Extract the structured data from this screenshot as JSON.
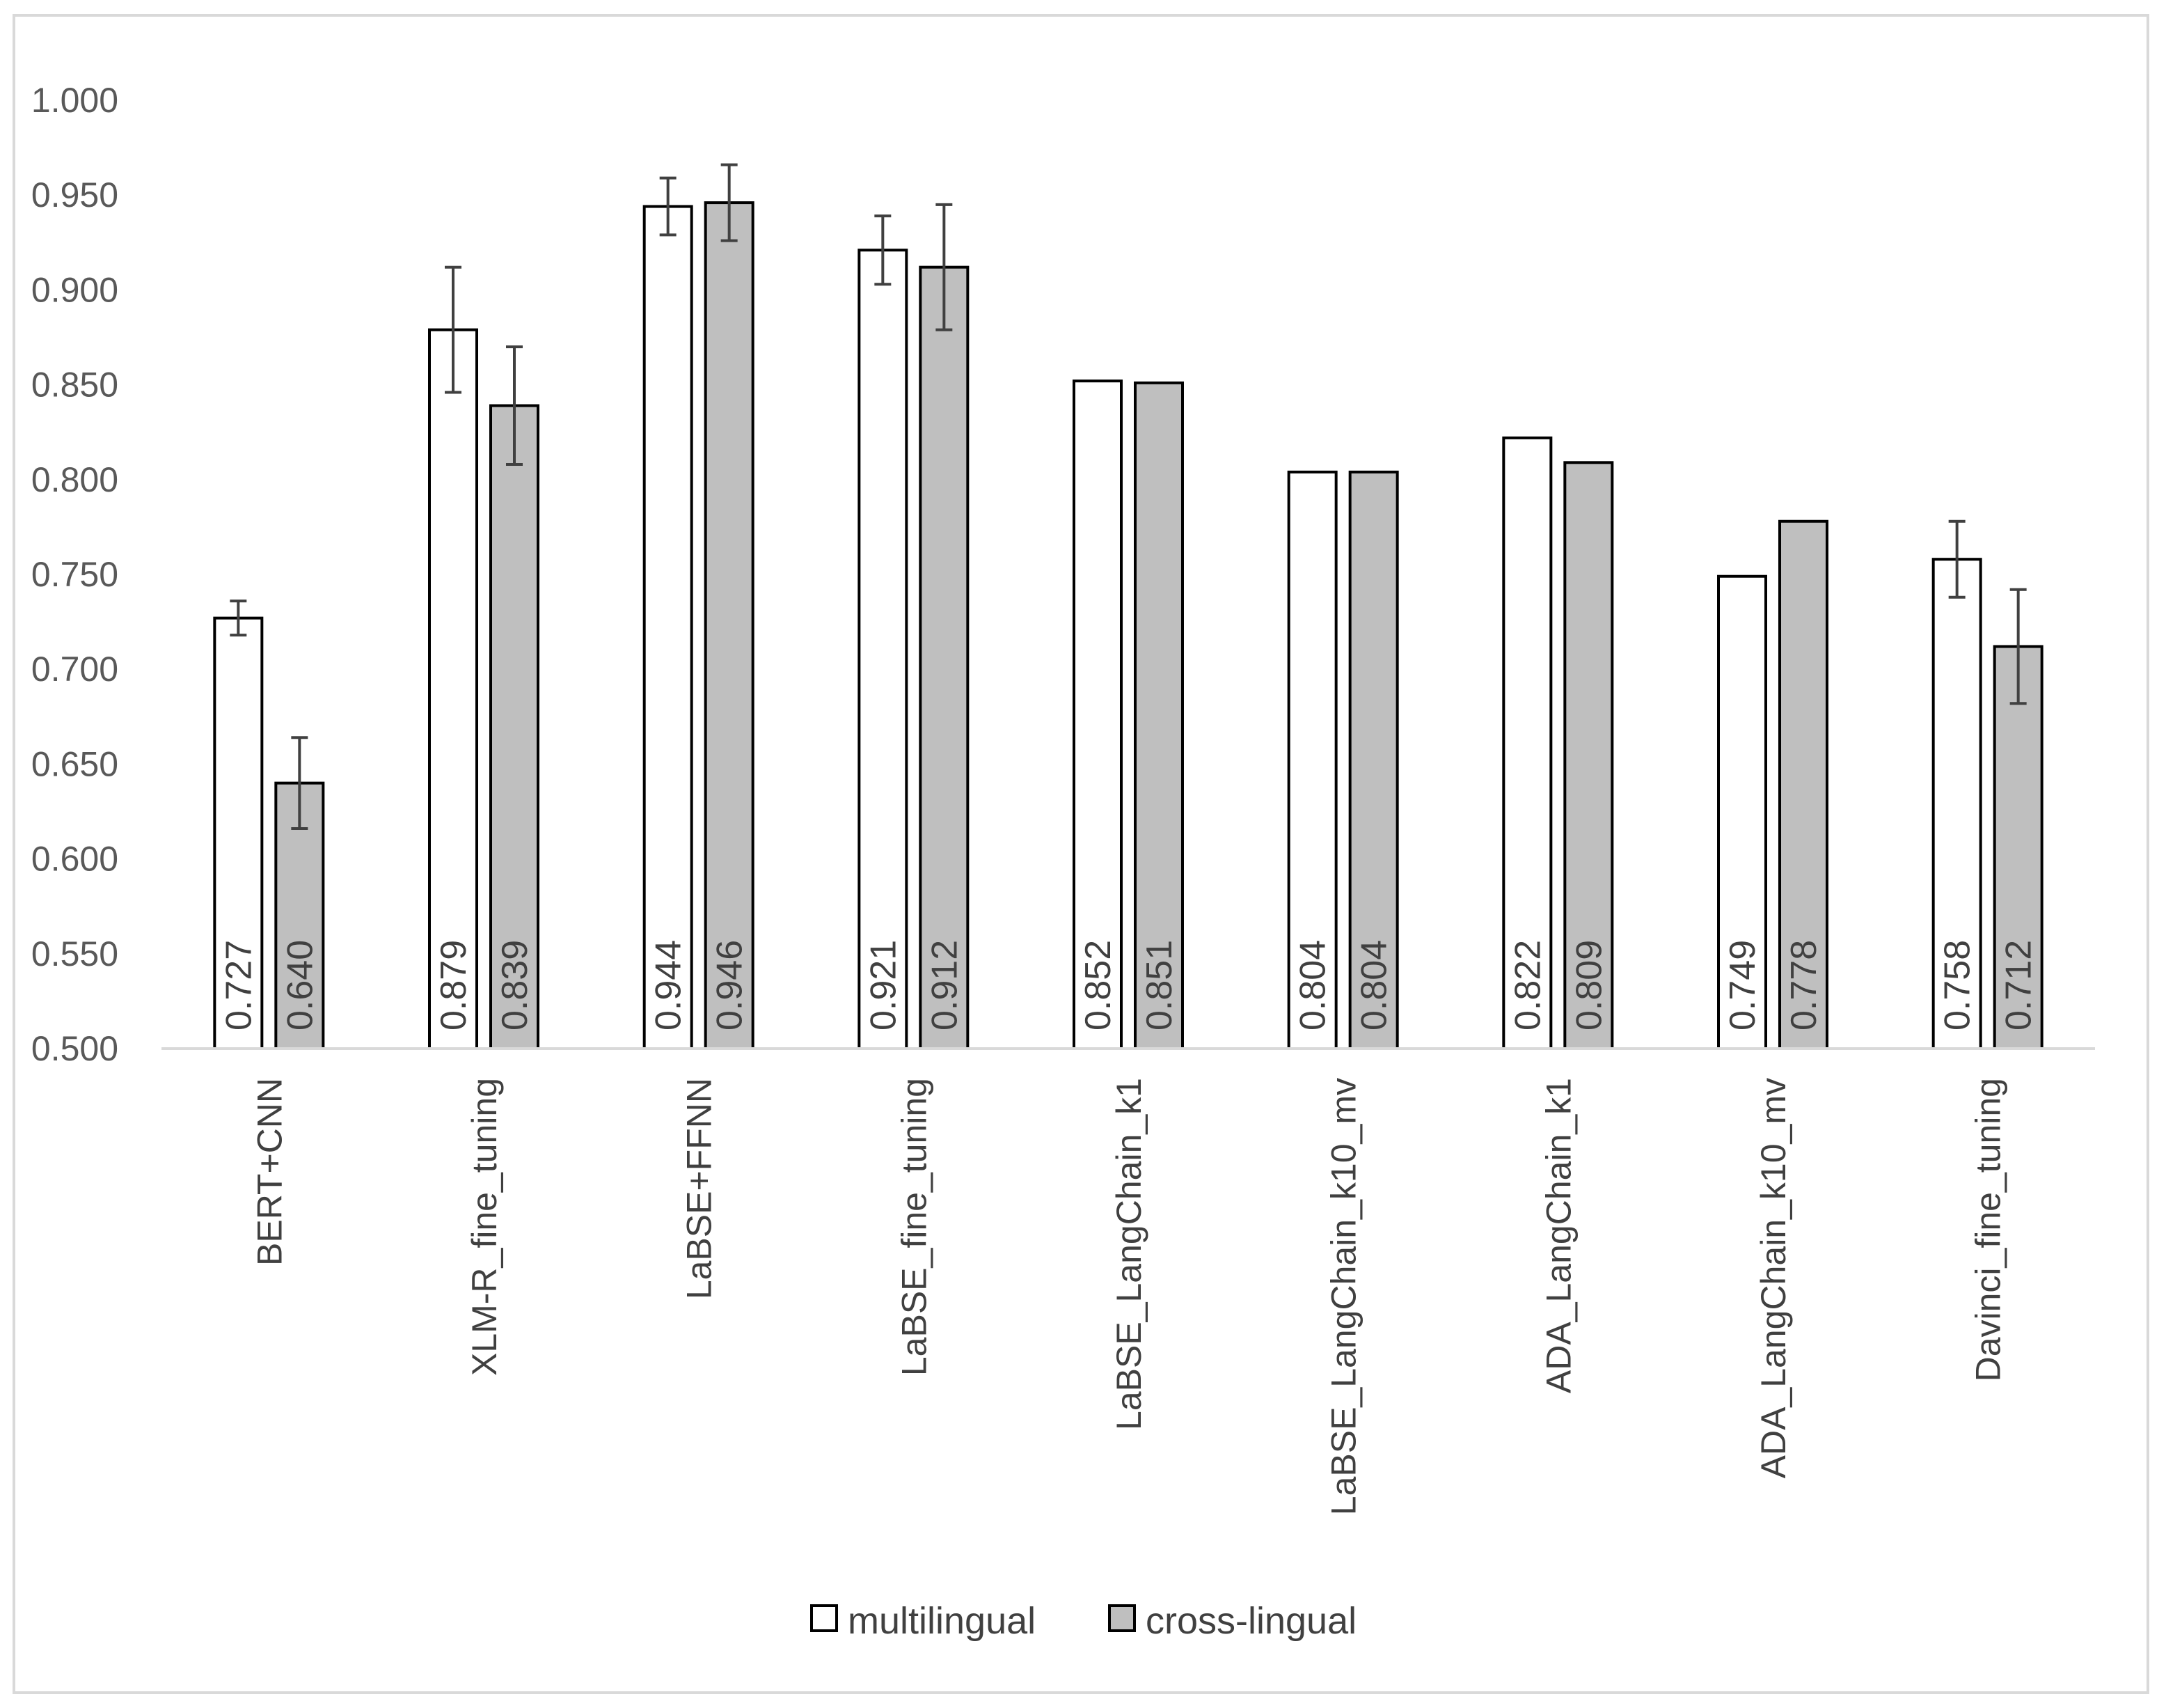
{
  "chart_data": {
    "type": "bar",
    "title": "",
    "xlabel": "",
    "ylabel": "",
    "ylim": [
      0.5,
      1.0
    ],
    "yticks": [
      "0.500",
      "0.550",
      "0.600",
      "0.650",
      "0.700",
      "0.750",
      "0.800",
      "0.850",
      "0.900",
      "0.950",
      "1.000"
    ],
    "grid": false,
    "legend_position": "bottom",
    "categories": [
      "BERT+CNN",
      "XLM-R_fine_tuning",
      "LaBSE+FFNN",
      "LaBSE_fine_tuning",
      "LaBSE_LangChain_k1",
      "LaBSE_LangChain_k10_mv",
      "ADA_LangChain_k1",
      "ADA_LangChain_k10_mv",
      "Davinci_fine_tuning"
    ],
    "series": [
      {
        "name": "multilingual",
        "color": "#ffffff",
        "values": [
          0.727,
          0.879,
          0.944,
          0.921,
          0.852,
          0.804,
          0.822,
          0.749,
          0.758
        ],
        "labels": [
          "0.727",
          "0.879",
          "0.944",
          "0.921",
          "0.852",
          "0.804",
          "0.822",
          "0.749",
          "0.758"
        ],
        "error": [
          0.009,
          0.033,
          0.015,
          0.018,
          null,
          null,
          null,
          null,
          0.02
        ]
      },
      {
        "name": "cross-lingual",
        "color": "#bfbfbf",
        "values": [
          0.64,
          0.839,
          0.946,
          0.912,
          0.851,
          0.804,
          0.809,
          0.778,
          0.712
        ],
        "labels": [
          "0.640",
          "0.839",
          "0.946",
          "0.912",
          "0.851",
          "0.804",
          "0.809",
          "0.778",
          "0.712"
        ],
        "error": [
          0.024,
          0.031,
          0.02,
          0.033,
          null,
          null,
          null,
          null,
          0.03
        ]
      }
    ]
  },
  "colors": {
    "bar_outline": "#000000",
    "axis_line": "#d9d9d9",
    "error_bar": "#404040"
  }
}
